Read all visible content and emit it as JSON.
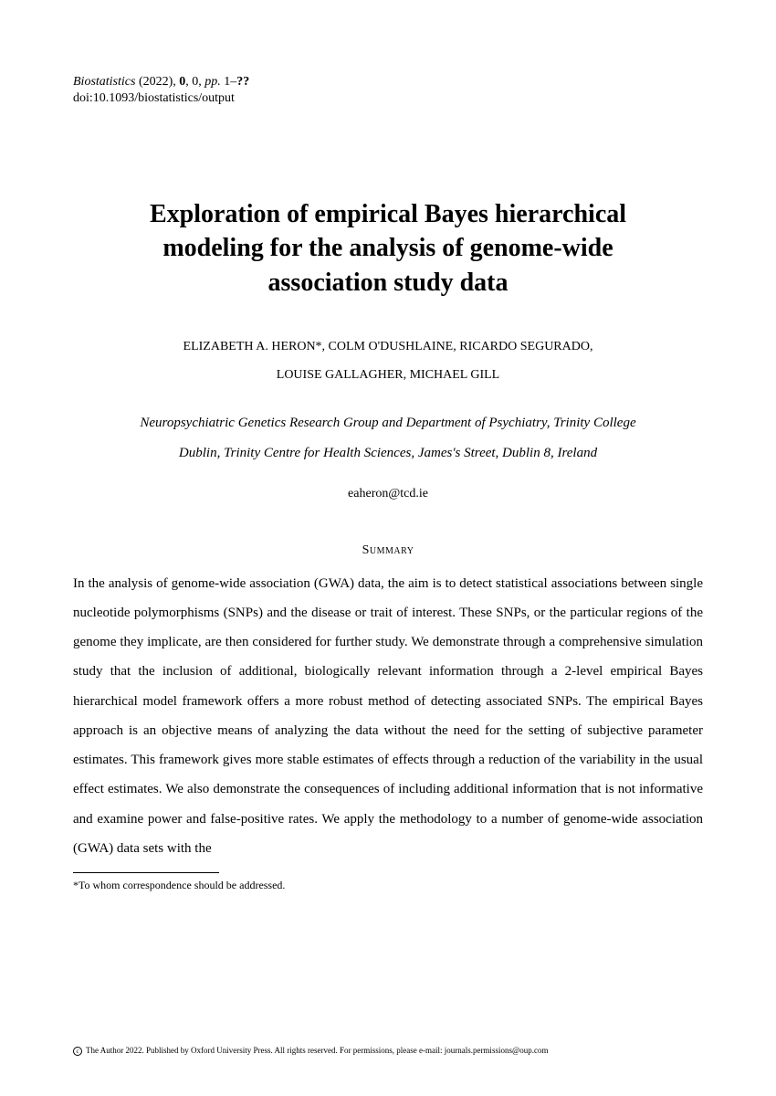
{
  "header": {
    "journal": "Biostatistics",
    "year": "(2022),",
    "volume": "0",
    "issue": "0,",
    "pages_prefix": "pp.",
    "pages": "1–",
    "pages_end": "??",
    "doi": "doi:10.1093/biostatistics/output"
  },
  "title": {
    "line1": "Exploration of empirical Bayes hierarchical",
    "line2": "modeling for the analysis of genome-wide",
    "line3": "association study data"
  },
  "authors": {
    "line1": "ELIZABETH A. HERON*, COLM O'DUSHLAINE, RICARDO SEGURADO,",
    "line2": "LOUISE GALLAGHER, MICHAEL GILL"
  },
  "affiliation": {
    "line1": "Neuropsychiatric Genetics Research Group and Department of Psychiatry, Trinity College",
    "line2": "Dublin, Trinity Centre for Health Sciences, James's Street, Dublin 8, Ireland"
  },
  "email": "eaheron@tcd.ie",
  "summary": {
    "heading": "Summary",
    "text": "In the analysis of genome-wide association (GWA) data, the aim is to detect statistical associations between single nucleotide polymorphisms (SNPs) and the disease or trait of interest. These SNPs, or the particular regions of the genome they implicate, are then considered for further study. We demonstrate through a comprehensive simulation study that the inclusion of additional, biologically relevant information through a 2-level empirical Bayes hierarchical model framework offers a more robust method of detecting associated SNPs. The empirical Bayes approach is an objective means of analyzing the data without the need for the setting of subjective parameter estimates. This framework gives more stable estimates of effects through a reduction of the variability in the usual effect estimates. We also demonstrate the consequences of including additional information that is not informative and examine power and false-positive rates. We apply the methodology to a number of genome-wide association (GWA) data sets with the"
  },
  "footnote": "*To whom correspondence should be addressed.",
  "copyright": "The Author 2022. Published by Oxford University Press. All rights reserved. For permissions, please e-mail: journals.permissions@oup.com"
}
